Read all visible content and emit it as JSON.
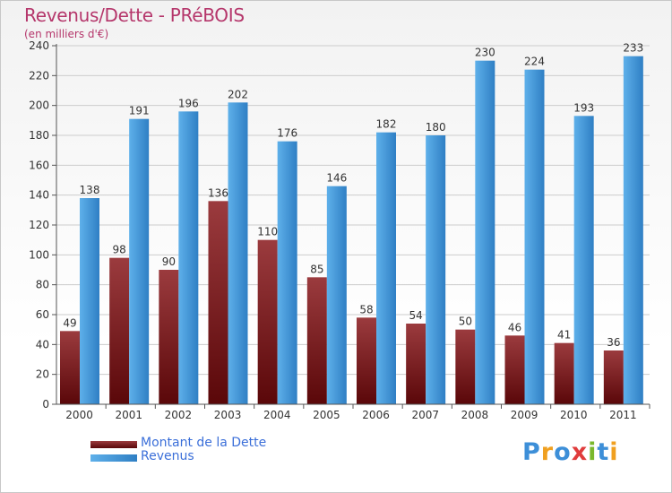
{
  "title": "Revenus/Dette - PRéBOIS",
  "subtitle": "(en milliers d'€)",
  "logo": {
    "text": "Proxiti",
    "letters": [
      {
        "ch": "P",
        "color": "#3d8fd8"
      },
      {
        "ch": "r",
        "color": "#f0a020"
      },
      {
        "ch": "o",
        "color": "#3d8fd8"
      },
      {
        "ch": "x",
        "color": "#e03c3c"
      },
      {
        "ch": "i",
        "color": "#7ab82c"
      },
      {
        "ch": "t",
        "color": "#3d8fd8"
      },
      {
        "ch": "i",
        "color": "#f0a020"
      }
    ]
  },
  "colors": {
    "dette_top": "#9b3b3e",
    "dette_bottom": "#5a0709",
    "revenus_top": "#5eb0ea",
    "revenus_bottom": "#2f7fc4",
    "grid": "#cccccc",
    "axis": "#555555",
    "legend_text": "#3b6fd9"
  },
  "chart_data": {
    "type": "bar",
    "title": "Revenus/Dette - PRéBOIS",
    "ylabel": "(en milliers d'€)",
    "xlabel": "",
    "categories": [
      "2000",
      "2001",
      "2002",
      "2003",
      "2004",
      "2005",
      "2006",
      "2007",
      "2008",
      "2009",
      "2010",
      "2011"
    ],
    "series": [
      {
        "name": "Montant de la Dette",
        "values": [
          49,
          98,
          90,
          136,
          110,
          85,
          58,
          54,
          50,
          46,
          41,
          36
        ]
      },
      {
        "name": "Revenus",
        "values": [
          138,
          191,
          196,
          202,
          176,
          146,
          182,
          180,
          230,
          224,
          193,
          233
        ]
      }
    ],
    "ylim": [
      0,
      240
    ],
    "yticks": [
      0,
      20,
      40,
      60,
      80,
      100,
      120,
      140,
      160,
      180,
      200,
      220,
      240
    ],
    "grid": true,
    "legend": "bottom-left"
  }
}
